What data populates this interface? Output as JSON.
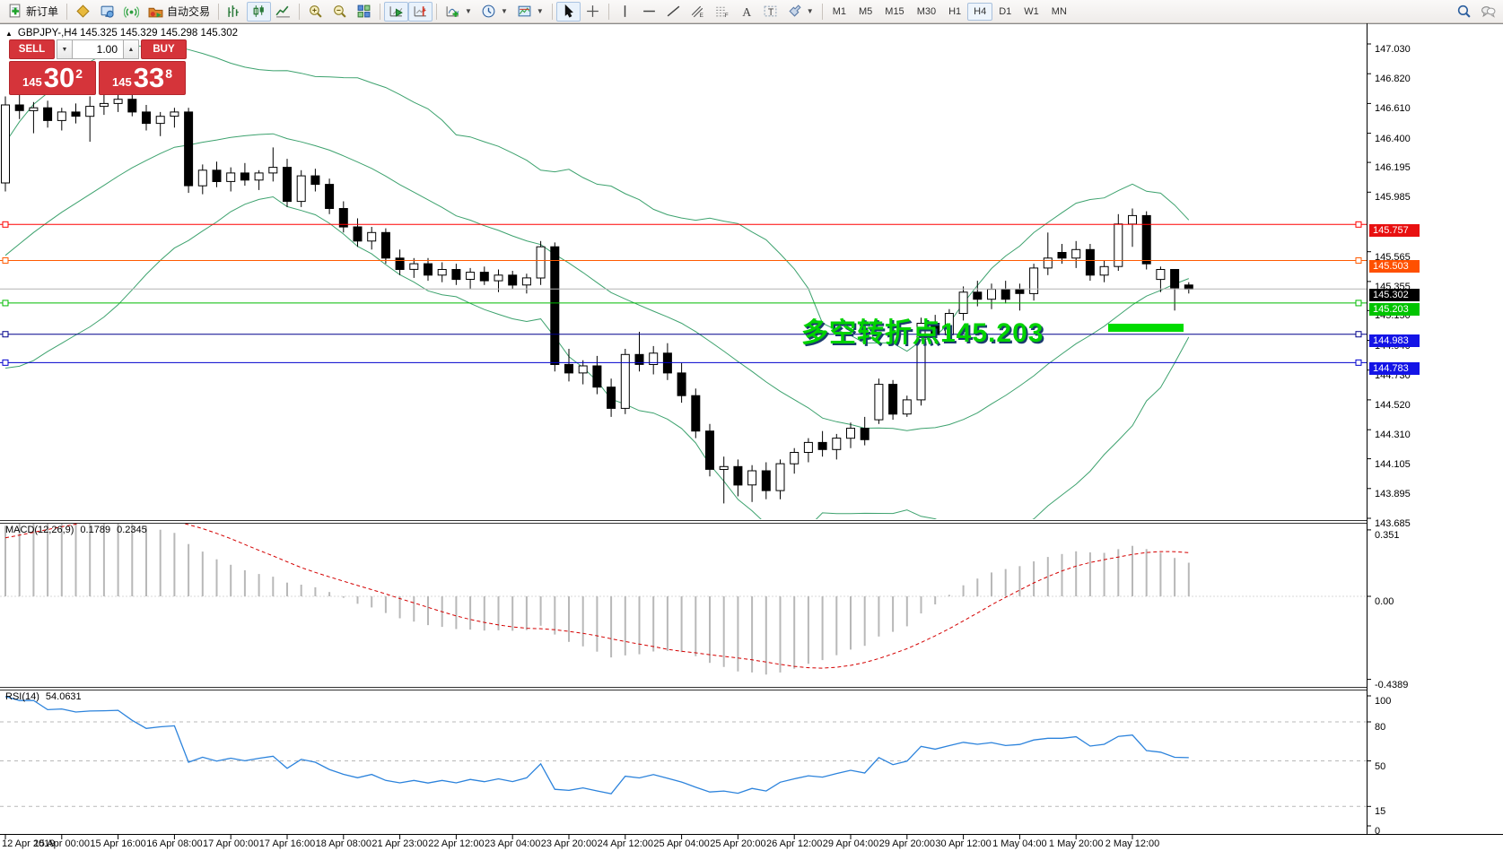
{
  "toolbar": {
    "groups": [
      {
        "items": [
          {
            "name": "new-order-button",
            "icon": "doc-plus",
            "label": "新订单",
            "interact": true
          }
        ]
      },
      {
        "items": [
          {
            "name": "metaeditor-button",
            "icon": "gold-book",
            "interact": true
          },
          {
            "name": "terminal-button",
            "icon": "blue-monitor",
            "interact": true
          },
          {
            "name": "network-button",
            "icon": "signal",
            "interact": true
          },
          {
            "name": "autotrading-button",
            "icon": "autotrade",
            "label": "自动交易",
            "interact": true
          }
        ]
      },
      {
        "items": [
          {
            "name": "bar-chart-button",
            "icon": "bars",
            "interact": true
          },
          {
            "name": "candlestick-chart-button",
            "icon": "candles",
            "active": true,
            "interact": true
          },
          {
            "name": "line-chart-button",
            "icon": "linechart",
            "interact": true
          }
        ]
      },
      {
        "items": [
          {
            "name": "zoom-in-button",
            "icon": "zoom-in",
            "interact": true
          },
          {
            "name": "zoom-out-button",
            "icon": "zoom-out",
            "interact": true
          },
          {
            "name": "tile-windows-button",
            "icon": "tiles",
            "interact": true
          }
        ]
      },
      {
        "items": [
          {
            "name": "auto-scroll-button",
            "icon": "autoscroll",
            "active": true,
            "interact": true
          },
          {
            "name": "chart-shift-button",
            "icon": "chartshift",
            "active": true,
            "interact": true
          }
        ]
      },
      {
        "items": [
          {
            "name": "indicators-button",
            "icon": "indicator-plus",
            "caret": true,
            "interact": true
          },
          {
            "name": "periods-button",
            "icon": "clock",
            "caret": true,
            "interact": true
          },
          {
            "name": "templates-button",
            "icon": "template",
            "caret": true,
            "interact": true
          }
        ]
      },
      {
        "items": [
          {
            "name": "cursor-button",
            "icon": "cursor",
            "active": true,
            "interact": true
          },
          {
            "name": "crosshair-button",
            "icon": "crosshair",
            "interact": true
          }
        ]
      },
      {
        "items": [
          {
            "name": "vertical-line-button",
            "icon": "vline",
            "interact": true
          },
          {
            "name": "horizontal-line-button",
            "icon": "hline",
            "interact": true
          },
          {
            "name": "trendline-button",
            "icon": "trendline",
            "interact": true
          },
          {
            "name": "channel-button",
            "icon": "channel",
            "interact": true
          },
          {
            "name": "fibonacci-button",
            "icon": "fibo",
            "interact": true
          },
          {
            "name": "text-button",
            "icon": "text-a",
            "interact": true
          },
          {
            "name": "label-button",
            "icon": "text-t",
            "interact": true
          },
          {
            "name": "shapes-button",
            "icon": "shapes",
            "caret": true,
            "interact": true
          }
        ]
      }
    ],
    "timeframes": [
      {
        "label": "M1"
      },
      {
        "label": "M5"
      },
      {
        "label": "M15"
      },
      {
        "label": "M30"
      },
      {
        "label": "H1"
      },
      {
        "label": "H4",
        "active": true
      },
      {
        "label": "D1"
      },
      {
        "label": "W1"
      },
      {
        "label": "MN"
      }
    ],
    "right_icons": [
      {
        "name": "search-icon",
        "icon": "search",
        "interact": true
      },
      {
        "name": "chat-icon",
        "icon": "chat",
        "interact": true
      }
    ]
  },
  "symbol_line": {
    "text": "GBPJPY-,H4  145.325 145.329 145.298 145.302"
  },
  "trade_panel": {
    "sell_label": "SELL",
    "buy_label": "BUY",
    "volume": "1.00",
    "sell_price": {
      "small": "145",
      "big": "30",
      "sup": "2"
    },
    "buy_price": {
      "small": "145",
      "big": "33",
      "sup": "8"
    },
    "red": "#d5343a"
  },
  "annotation": {
    "text": "多空转折点145.203",
    "color": "#00d300"
  },
  "macd_panel": {
    "label": "MACD(12,26,9)",
    "value1": "0.1789",
    "value2": "0.2345",
    "ticks": [
      {
        "v": 0.351,
        "label": "0.351"
      },
      {
        "v": 0.0,
        "label": "0.00"
      },
      {
        "v": -0.4389,
        "label": "-0.4389"
      }
    ]
  },
  "rsi_panel": {
    "label": "RSI(14)",
    "value": "54.0631",
    "ticks": [
      {
        "v": 100,
        "label": "100"
      },
      {
        "v": 80,
        "label": "80",
        "dashed": true
      },
      {
        "v": 50,
        "label": "50",
        "dashed": true
      },
      {
        "v": 15,
        "label": "15",
        "dashed": true
      },
      {
        "v": 0,
        "label": "0"
      }
    ]
  },
  "price_axis": {
    "ticks": [
      "147.030",
      "146.820",
      "146.610",
      "146.400",
      "146.195",
      "145.985",
      "145.565",
      "145.355",
      "145.150",
      "144.940",
      "144.730",
      "144.520",
      "144.310",
      "144.105",
      "143.895",
      "143.685"
    ],
    "badges": [
      {
        "price": 145.757,
        "label": "145.757",
        "color": "#e81010",
        "line": "#ff0000",
        "endmarks": true
      },
      {
        "price": 145.503,
        "label": "145.503",
        "color": "#ff5000",
        "line": "#ff5a00",
        "endmarks": true
      },
      {
        "price": 145.302,
        "label": "145.302",
        "color": "#000000",
        "line": "#b4b4b4",
        "current": true
      },
      {
        "price": 145.203,
        "label": "145.203",
        "color": "#00c400",
        "line": "#00bb00",
        "endmarks": true
      },
      {
        "price": 144.983,
        "label": "144.983",
        "color": "#1414e6",
        "line": "#00008b",
        "endmarks": true
      },
      {
        "price": 144.783,
        "label": "144.783",
        "color": "#1414e6",
        "line": "#0000cd",
        "endmarks": true
      }
    ]
  },
  "time_axis": {
    "labels": [
      "12 Apr 2019",
      "15 Apr 00:00",
      "15 Apr 16:00",
      "16 Apr 08:00",
      "17 Apr 00:00",
      "17 Apr 16:00",
      "18 Apr 08:00",
      "21 Apr 23:00",
      "22 Apr 12:00",
      "23 Apr 04:00",
      "23 Apr 20:00",
      "24 Apr 12:00",
      "25 Apr 04:00",
      "25 Apr 20:00",
      "26 Apr 12:00",
      "29 Apr 04:00",
      "29 Apr 20:00",
      "30 Apr 12:00",
      "1 May 04:00",
      "1 May 20:00",
      "2 May 12:00"
    ]
  },
  "chart_data": {
    "type": "candlestick",
    "symbol": "GBPJPY-",
    "timeframe": "H4",
    "bull_color": "#ffffff",
    "bear_color": "#000000",
    "bollinger_color": "#3da26e",
    "rsi_color": "#2c83dc",
    "macd_hist_color": "#b8b8b8",
    "macd_signal_color": "#d40000",
    "ylim": [
      143.672,
      147.175
    ],
    "ohlc": [
      [
        146.05,
        146.66,
        145.99,
        146.6
      ],
      [
        146.6,
        146.68,
        146.5,
        146.56
      ],
      [
        146.56,
        146.62,
        146.4,
        146.58
      ],
      [
        146.58,
        146.63,
        146.44,
        146.49
      ],
      [
        146.49,
        146.58,
        146.42,
        146.55
      ],
      [
        146.55,
        146.61,
        146.47,
        146.52
      ],
      [
        146.52,
        146.66,
        146.34,
        146.59
      ],
      [
        146.59,
        146.68,
        146.53,
        146.61
      ],
      [
        146.61,
        146.7,
        146.55,
        146.64
      ],
      [
        146.64,
        146.69,
        146.52,
        146.55
      ],
      [
        146.55,
        146.6,
        146.42,
        146.47
      ],
      [
        146.47,
        146.55,
        146.38,
        146.52
      ],
      [
        146.52,
        146.58,
        146.44,
        146.55
      ],
      [
        146.55,
        146.58,
        145.98,
        146.03
      ],
      [
        146.03,
        146.18,
        145.97,
        146.14
      ],
      [
        146.14,
        146.2,
        146.02,
        146.06
      ],
      [
        146.06,
        146.16,
        145.99,
        146.12
      ],
      [
        146.12,
        146.19,
        146.03,
        146.07
      ],
      [
        146.07,
        146.14,
        146.0,
        146.12
      ],
      [
        146.12,
        146.3,
        146.06,
        146.16
      ],
      [
        146.16,
        146.22,
        145.88,
        145.92
      ],
      [
        145.92,
        146.14,
        145.88,
        146.1
      ],
      [
        146.1,
        146.15,
        145.99,
        146.04
      ],
      [
        146.04,
        146.08,
        145.83,
        145.87
      ],
      [
        145.87,
        145.92,
        145.7,
        145.74
      ],
      [
        145.74,
        145.8,
        145.6,
        145.64
      ],
      [
        145.64,
        145.74,
        145.58,
        145.7
      ],
      [
        145.7,
        145.73,
        145.48,
        145.52
      ],
      [
        145.52,
        145.58,
        145.4,
        145.44
      ],
      [
        145.44,
        145.52,
        145.38,
        145.48
      ],
      [
        145.48,
        145.52,
        145.36,
        145.4
      ],
      [
        145.4,
        145.49,
        145.35,
        145.44
      ],
      [
        145.44,
        145.48,
        145.33,
        145.37
      ],
      [
        145.37,
        145.45,
        145.3,
        145.42
      ],
      [
        145.42,
        145.46,
        145.33,
        145.36
      ],
      [
        145.36,
        145.44,
        145.28,
        145.4
      ],
      [
        145.4,
        145.43,
        145.3,
        145.33
      ],
      [
        145.33,
        145.41,
        145.27,
        145.38
      ],
      [
        145.38,
        145.64,
        145.33,
        145.6
      ],
      [
        145.6,
        145.63,
        144.72,
        144.77
      ],
      [
        144.77,
        144.88,
        144.65,
        144.71
      ],
      [
        144.71,
        144.8,
        144.63,
        144.76
      ],
      [
        144.76,
        144.83,
        144.56,
        144.61
      ],
      [
        144.61,
        144.67,
        144.4,
        144.46
      ],
      [
        144.46,
        144.88,
        144.42,
        144.84
      ],
      [
        144.84,
        145.0,
        144.72,
        144.77
      ],
      [
        144.77,
        144.9,
        144.7,
        144.85
      ],
      [
        144.85,
        144.92,
        144.66,
        144.71
      ],
      [
        144.71,
        144.78,
        144.5,
        144.55
      ],
      [
        144.55,
        144.6,
        144.25,
        144.3
      ],
      [
        144.3,
        144.35,
        143.98,
        144.03
      ],
      [
        144.03,
        144.12,
        143.79,
        144.05
      ],
      [
        144.05,
        144.1,
        143.84,
        143.92
      ],
      [
        143.92,
        144.06,
        143.8,
        144.02
      ],
      [
        144.02,
        144.08,
        143.82,
        143.88
      ],
      [
        143.88,
        144.1,
        143.82,
        144.07
      ],
      [
        144.07,
        144.18,
        144.0,
        144.15
      ],
      [
        144.15,
        144.25,
        144.08,
        144.22
      ],
      [
        144.22,
        144.3,
        144.12,
        144.17
      ],
      [
        144.17,
        144.28,
        144.1,
        144.25
      ],
      [
        144.25,
        144.36,
        144.18,
        144.32
      ],
      [
        144.32,
        144.4,
        144.2,
        144.24
      ],
      [
        144.38,
        144.67,
        144.35,
        144.63
      ],
      [
        144.63,
        144.66,
        144.38,
        144.42
      ],
      [
        144.42,
        144.55,
        144.4,
        144.52
      ],
      [
        144.52,
        145.1,
        144.48,
        145.06
      ],
      [
        145.06,
        145.12,
        144.92,
        144.98
      ],
      [
        144.98,
        145.16,
        144.93,
        145.13
      ],
      [
        145.13,
        145.32,
        145.08,
        145.28
      ],
      [
        145.28,
        145.36,
        145.18,
        145.23
      ],
      [
        145.23,
        145.34,
        145.16,
        145.3
      ],
      [
        145.3,
        145.36,
        145.2,
        145.23
      ],
      [
        145.3,
        145.34,
        145.15,
        145.27
      ],
      [
        145.27,
        145.48,
        145.22,
        145.45
      ],
      [
        145.45,
        145.7,
        145.4,
        145.52
      ],
      [
        145.56,
        145.62,
        145.48,
        145.52
      ],
      [
        145.52,
        145.64,
        145.45,
        145.58
      ],
      [
        145.58,
        145.62,
        145.36,
        145.4
      ],
      [
        145.4,
        145.5,
        145.35,
        145.46
      ],
      [
        145.46,
        145.83,
        145.43,
        145.76
      ],
      [
        145.76,
        145.87,
        145.6,
        145.82
      ],
      [
        145.82,
        145.85,
        145.44,
        145.48
      ],
      [
        145.37,
        145.46,
        145.28,
        145.44
      ],
      [
        145.44,
        145.44,
        145.15,
        145.31
      ],
      [
        145.33,
        145.35,
        145.27,
        145.3
      ]
    ]
  }
}
